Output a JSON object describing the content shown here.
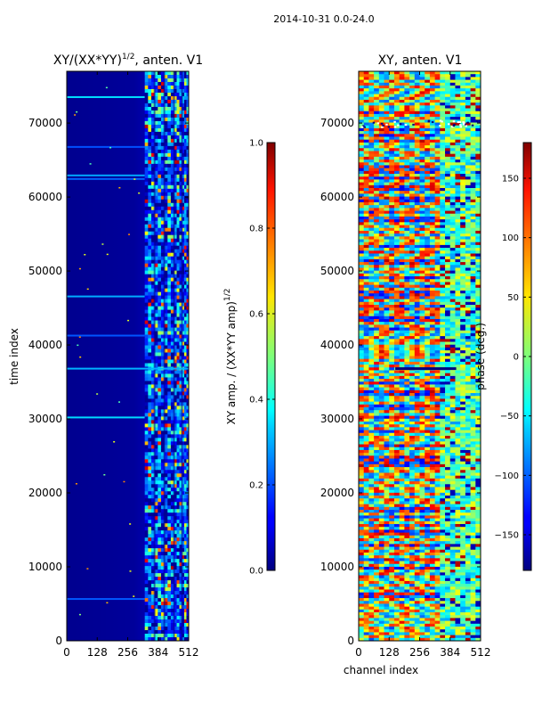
{
  "figure": {
    "suptitle": "2014-10-31 0.0-24.0"
  },
  "chart_data": [
    {
      "type": "heatmap",
      "title_main": "XY/(XX*YY)",
      "title_exp": "1/2",
      "title_rest": ", anten. V1",
      "xlabel": "",
      "ylabel": "time index",
      "xlim": [
        0,
        512
      ],
      "ylim": [
        0,
        77000
      ],
      "x_ticks": [
        0,
        128,
        256,
        384,
        512
      ],
      "y_ticks": [
        0,
        10000,
        20000,
        30000,
        40000,
        50000,
        60000,
        70000
      ],
      "colorbar": {
        "label_main": "XY amp. / (XX*YY amp)",
        "label_exp": "1/2",
        "range": [
          0.0,
          1.0
        ],
        "ticks": [
          "0.0",
          "0.2",
          "0.4",
          "0.6",
          "0.8",
          "1.0"
        ],
        "tick_values": [
          0.0,
          0.2,
          0.4,
          0.6,
          0.8,
          1.0
        ]
      }
    },
    {
      "type": "heatmap",
      "title": "XY, anten. V1",
      "xlabel": "channel index",
      "ylabel": "",
      "xlim": [
        0,
        512
      ],
      "ylim": [
        0,
        77000
      ],
      "x_ticks": [
        0,
        128,
        256,
        384,
        512
      ],
      "y_ticks": [
        0,
        10000,
        20000,
        30000,
        40000,
        50000,
        60000,
        70000
      ],
      "colorbar": {
        "label": "phase (deg.)",
        "range": [
          -180,
          180
        ],
        "ticks": [
          "−150",
          "−100",
          "−50",
          "0",
          "50",
          "100",
          "150"
        ],
        "tick_values": [
          -150,
          -100,
          -50,
          0,
          50,
          100,
          150
        ]
      }
    }
  ]
}
